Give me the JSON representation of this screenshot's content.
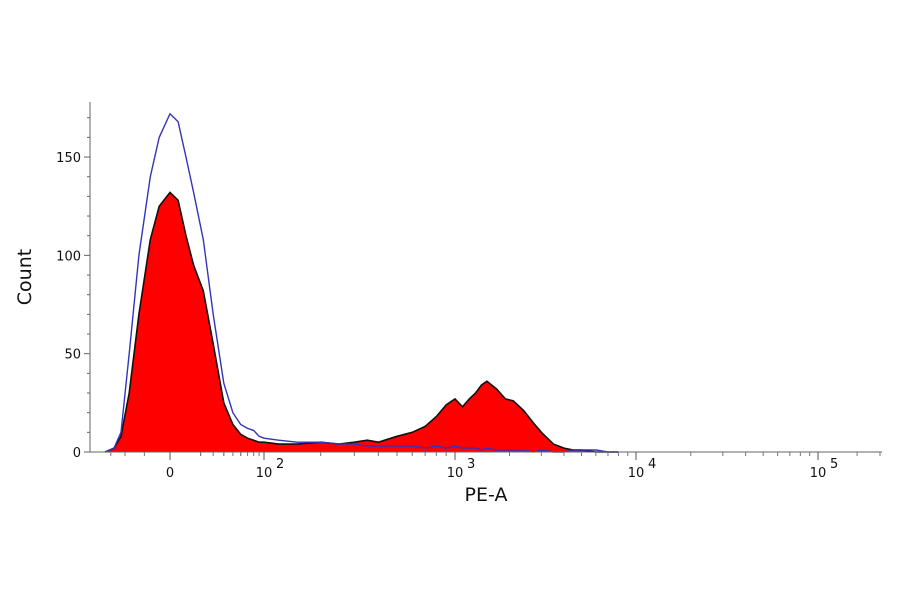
{
  "chart_data": {
    "type": "area",
    "xlabel": "PE-A",
    "ylabel": "Count",
    "x_scale": "biexponential",
    "ylim": [
      0,
      178
    ],
    "y_ticks": [
      {
        "value": 0,
        "label": "0"
      },
      {
        "value": 50,
        "label": "50"
      },
      {
        "value": 100,
        "label": "100"
      },
      {
        "value": 150,
        "label": "150"
      }
    ],
    "x_ticks": [
      {
        "value": 0,
        "label": "0",
        "exp": ""
      },
      {
        "value": 100,
        "label": "10",
        "exp": "2"
      },
      {
        "value": 1000,
        "label": "10",
        "exp": "3"
      },
      {
        "value": 10000,
        "label": "10",
        "exp": "4"
      },
      {
        "value": 100000,
        "label": "10",
        "exp": "5"
      }
    ],
    "grid": false,
    "series": [
      {
        "style": "filled",
        "color": "#ff0000",
        "outline": "#111111",
        "x": [
          -70,
          -55,
          -45,
          -35,
          -25,
          -15,
          -8,
          0,
          5,
          10,
          15,
          22,
          30,
          40,
          50,
          60,
          70,
          80,
          90,
          100,
          120,
          150,
          200,
          250,
          300,
          350,
          400,
          500,
          600,
          700,
          800,
          900,
          1000,
          1100,
          1200,
          1300,
          1400,
          1500,
          1700,
          1900,
          2100,
          2400,
          2700,
          3000,
          3500,
          4000,
          4500,
          5000,
          6000,
          7000,
          8000
        ],
        "y": [
          0,
          2,
          8,
          30,
          70,
          108,
          125,
          132,
          128,
          110,
          95,
          82,
          55,
          25,
          14,
          9,
          7,
          6,
          5,
          5,
          4,
          4,
          5,
          4,
          5,
          6,
          5,
          8,
          10,
          13,
          18,
          24,
          27,
          23,
          27,
          30,
          34,
          36,
          32,
          27,
          26,
          21,
          15,
          10,
          4,
          2,
          1,
          1,
          0,
          0,
          0
        ]
      },
      {
        "style": "line",
        "color": "#3333bb",
        "x": [
          -70,
          -55,
          -45,
          -35,
          -25,
          -15,
          -8,
          0,
          5,
          10,
          15,
          22,
          30,
          40,
          50,
          60,
          70,
          80,
          90,
          100,
          120,
          150,
          200,
          250,
          300,
          350,
          400,
          500,
          600,
          700,
          800,
          900,
          1000,
          1100,
          1200,
          1300,
          1400,
          1500,
          1700,
          1900,
          2100,
          2400,
          2700,
          3000,
          3500,
          4000,
          4500,
          5000,
          6000,
          7000,
          8000
        ],
        "y": [
          0,
          2,
          10,
          50,
          100,
          140,
          160,
          172,
          168,
          150,
          132,
          108,
          70,
          35,
          20,
          14,
          12,
          11,
          8,
          7,
          6,
          5,
          5,
          4,
          4,
          3,
          3,
          3,
          3,
          2,
          3,
          2,
          3,
          2,
          2,
          2,
          1,
          2,
          1,
          1,
          1,
          1,
          0,
          1,
          0,
          0,
          1,
          1,
          1,
          0,
          0
        ]
      }
    ]
  }
}
